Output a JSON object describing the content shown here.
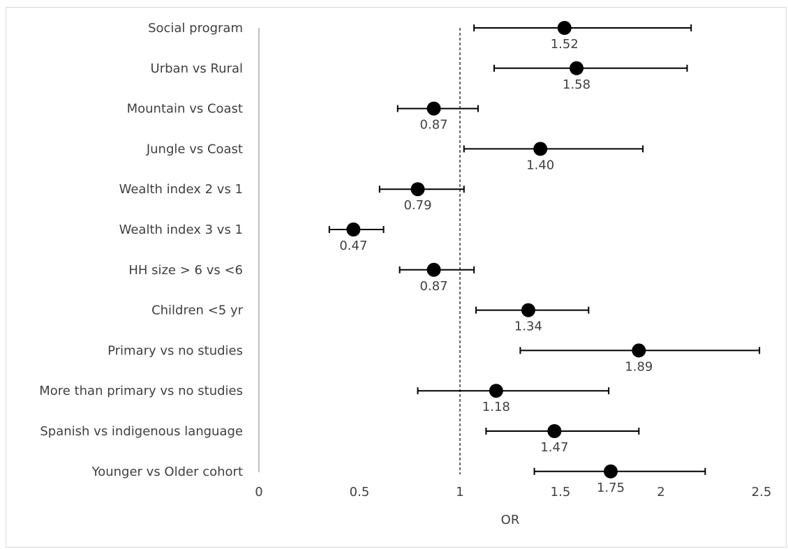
{
  "chart_data": {
    "type": "scatter",
    "title": "",
    "xlabel": "OR",
    "ylabel": "",
    "xlim": [
      0,
      2.5
    ],
    "xticks": [
      0,
      0.5,
      1,
      1.5,
      2,
      2.5
    ],
    "xtick_labels": [
      "0",
      "0.5",
      "1",
      "1.5",
      "2",
      "2.5"
    ],
    "reference_line": 1,
    "grid": false,
    "legend": "none",
    "categories": [
      "Social program",
      "Urban vs Rural",
      "Mountain vs Coast",
      "Jungle vs Coast",
      "Wealth index 2 vs 1",
      "Wealth index 3 vs 1",
      "HH size > 6 vs <6",
      "Children <5 yr",
      "Primary vs no studies",
      "More than primary vs no studies",
      "Spanish vs indigenous language",
      "Younger vs Older cohort"
    ],
    "series": [
      {
        "values": [
          1.52,
          1.58,
          0.87,
          1.4,
          0.79,
          0.47,
          0.87,
          1.34,
          1.89,
          1.18,
          1.47,
          1.75
        ],
        "lower": [
          1.07,
          1.17,
          0.69,
          1.02,
          0.6,
          0.35,
          0.7,
          1.08,
          1.3,
          0.79,
          1.13,
          1.37
        ],
        "upper": [
          2.15,
          2.13,
          1.09,
          1.91,
          1.02,
          0.62,
          1.07,
          1.64,
          2.49,
          1.74,
          1.89,
          2.22
        ],
        "labels": [
          "1.52",
          "1.58",
          "0.87",
          "1.40",
          "0.79",
          "0.47",
          "0.87",
          "1.34",
          "1.89",
          "1.18",
          "1.47",
          "1.75"
        ]
      }
    ],
    "colors": {
      "marker": "#000000",
      "text": "#404040",
      "axis": "#bfbfbf",
      "frame": "#d9d9d9"
    }
  }
}
